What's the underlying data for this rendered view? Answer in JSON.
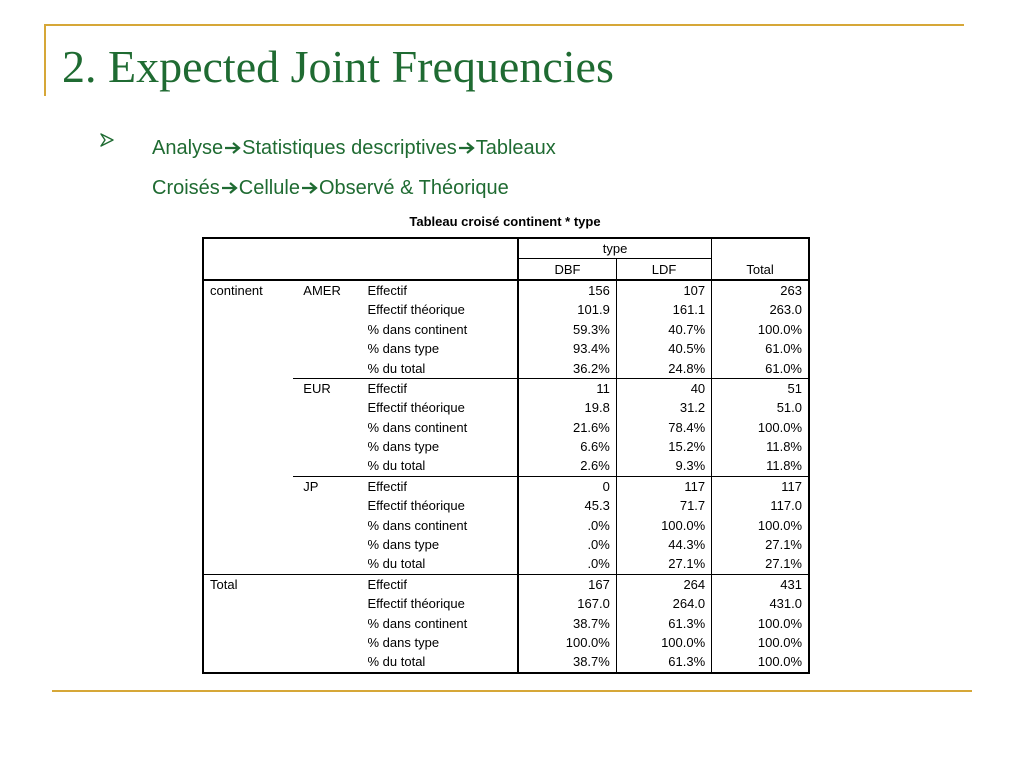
{
  "slide": {
    "title": "2. Expected Joint Frequencies",
    "bullet": {
      "line1": {
        "a": "Analyse",
        "b": "Statistiques descriptives",
        "c": "Tableaux"
      },
      "line2": {
        "a": "Croisés",
        "b": "Cellule",
        "c": "Observé & Théorique"
      }
    },
    "colors": {
      "accent": "#1f6b32",
      "frame": "#d6a738"
    }
  },
  "table": {
    "caption": "Tableau croisé continent * type",
    "header": {
      "group": "type",
      "cols": [
        "DBF",
        "LDF",
        "Total"
      ]
    },
    "row_dim": "continent",
    "groups": [
      {
        "label": "AMER",
        "rows": [
          {
            "stat": "Effectif",
            "v": [
              "156",
              "107",
              "263"
            ]
          },
          {
            "stat": "Effectif théorique",
            "v": [
              "101.9",
              "161.1",
              "263.0"
            ]
          },
          {
            "stat": "% dans continent",
            "v": [
              "59.3%",
              "40.7%",
              "100.0%"
            ]
          },
          {
            "stat": "% dans type",
            "v": [
              "93.4%",
              "40.5%",
              "61.0%"
            ]
          },
          {
            "stat": "% du total",
            "v": [
              "36.2%",
              "24.8%",
              "61.0%"
            ]
          }
        ]
      },
      {
        "label": "EUR",
        "rows": [
          {
            "stat": "Effectif",
            "v": [
              "11",
              "40",
              "51"
            ]
          },
          {
            "stat": "Effectif théorique",
            "v": [
              "19.8",
              "31.2",
              "51.0"
            ]
          },
          {
            "stat": "% dans continent",
            "v": [
              "21.6%",
              "78.4%",
              "100.0%"
            ]
          },
          {
            "stat": "% dans type",
            "v": [
              "6.6%",
              "15.2%",
              "11.8%"
            ]
          },
          {
            "stat": "% du total",
            "v": [
              "2.6%",
              "9.3%",
              "11.8%"
            ]
          }
        ]
      },
      {
        "label": "JP",
        "rows": [
          {
            "stat": "Effectif",
            "v": [
              "0",
              "117",
              "117"
            ]
          },
          {
            "stat": "Effectif théorique",
            "v": [
              "45.3",
              "71.7",
              "117.0"
            ]
          },
          {
            "stat": "% dans continent",
            "v": [
              ".0%",
              "100.0%",
              "100.0%"
            ]
          },
          {
            "stat": "% dans type",
            "v": [
              ".0%",
              "44.3%",
              "27.1%"
            ]
          },
          {
            "stat": "% du total",
            "v": [
              ".0%",
              "27.1%",
              "27.1%"
            ]
          }
        ]
      }
    ],
    "total": {
      "label": "Total",
      "rows": [
        {
          "stat": "Effectif",
          "v": [
            "167",
            "264",
            "431"
          ]
        },
        {
          "stat": "Effectif théorique",
          "v": [
            "167.0",
            "264.0",
            "431.0"
          ]
        },
        {
          "stat": "% dans continent",
          "v": [
            "38.7%",
            "61.3%",
            "100.0%"
          ]
        },
        {
          "stat": "% dans type",
          "v": [
            "100.0%",
            "100.0%",
            "100.0%"
          ]
        },
        {
          "stat": "% du total",
          "v": [
            "38.7%",
            "61.3%",
            "100.0%"
          ]
        }
      ]
    }
  }
}
